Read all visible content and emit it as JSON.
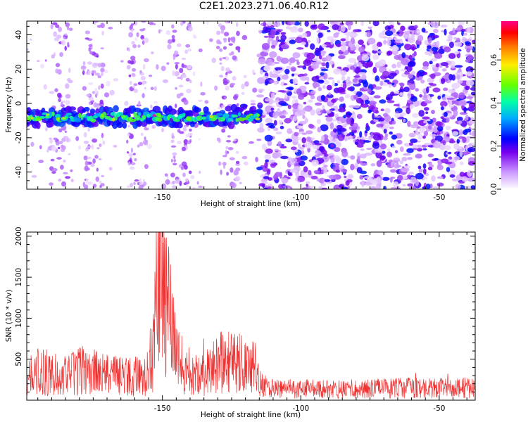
{
  "title": "C2E1.2023.271.06.40.R12",
  "chart_data": [
    {
      "type": "heatmap",
      "xlabel": "Height of straight line (km)",
      "ylabel": "Frequency (Hz)",
      "xlim": [
        -199,
        -37
      ],
      "ylim": [
        -50,
        48
      ],
      "xticks": [
        -150,
        -100,
        -50
      ],
      "yticks": [
        -40,
        -20,
        0,
        20,
        40
      ],
      "colorbar": {
        "label": "Normalized spectral amplitude",
        "range": [
          0,
          0.78
        ],
        "ticks": [
          0.0,
          0.2,
          0.4,
          0.6
        ],
        "tick_labels": [
          "0.0",
          "0.2",
          "0.4",
          "0.6"
        ]
      },
      "features": {
        "tone_band_frequency_hz": -8,
        "tone_band_x_range": [
          -199,
          -115
        ],
        "tone_band_peak_x": -153,
        "tone_band_peak_amplitude": 0.78,
        "broadband_noise_x_range": [
          -115,
          -37
        ],
        "weak_vertical_streaks_x": [
          -187,
          -175,
          -159,
          -143,
          -126
        ]
      }
    },
    {
      "type": "line",
      "xlabel": "Height of straight line (km)",
      "ylabel": "SNR (10 * v/v)",
      "xlim": [
        -199,
        -37
      ],
      "ylim": [
        0,
        2050
      ],
      "xticks": [
        -150,
        -100,
        -50
      ],
      "yticks": [
        500,
        1000,
        1500,
        2000
      ],
      "series": [
        {
          "name": "SNR",
          "color": "#ee3333",
          "x": [
            -199,
            -192,
            -185,
            -178,
            -172,
            -166,
            -160,
            -156,
            -153,
            -152,
            -151,
            -150,
            -149,
            -147,
            -145,
            -140,
            -135,
            -130,
            -125,
            -120,
            -116,
            -114,
            -110,
            -100,
            -90,
            -80,
            -70,
            -60,
            -50,
            -40,
            -37
          ],
          "y": [
            330,
            340,
            290,
            370,
            310,
            300,
            290,
            270,
            700,
            1400,
            1900,
            1350,
            1150,
            950,
            520,
            300,
            330,
            460,
            470,
            430,
            380,
            180,
            140,
            140,
            135,
            140,
            145,
            150,
            145,
            150,
            150
          ]
        }
      ]
    }
  ]
}
